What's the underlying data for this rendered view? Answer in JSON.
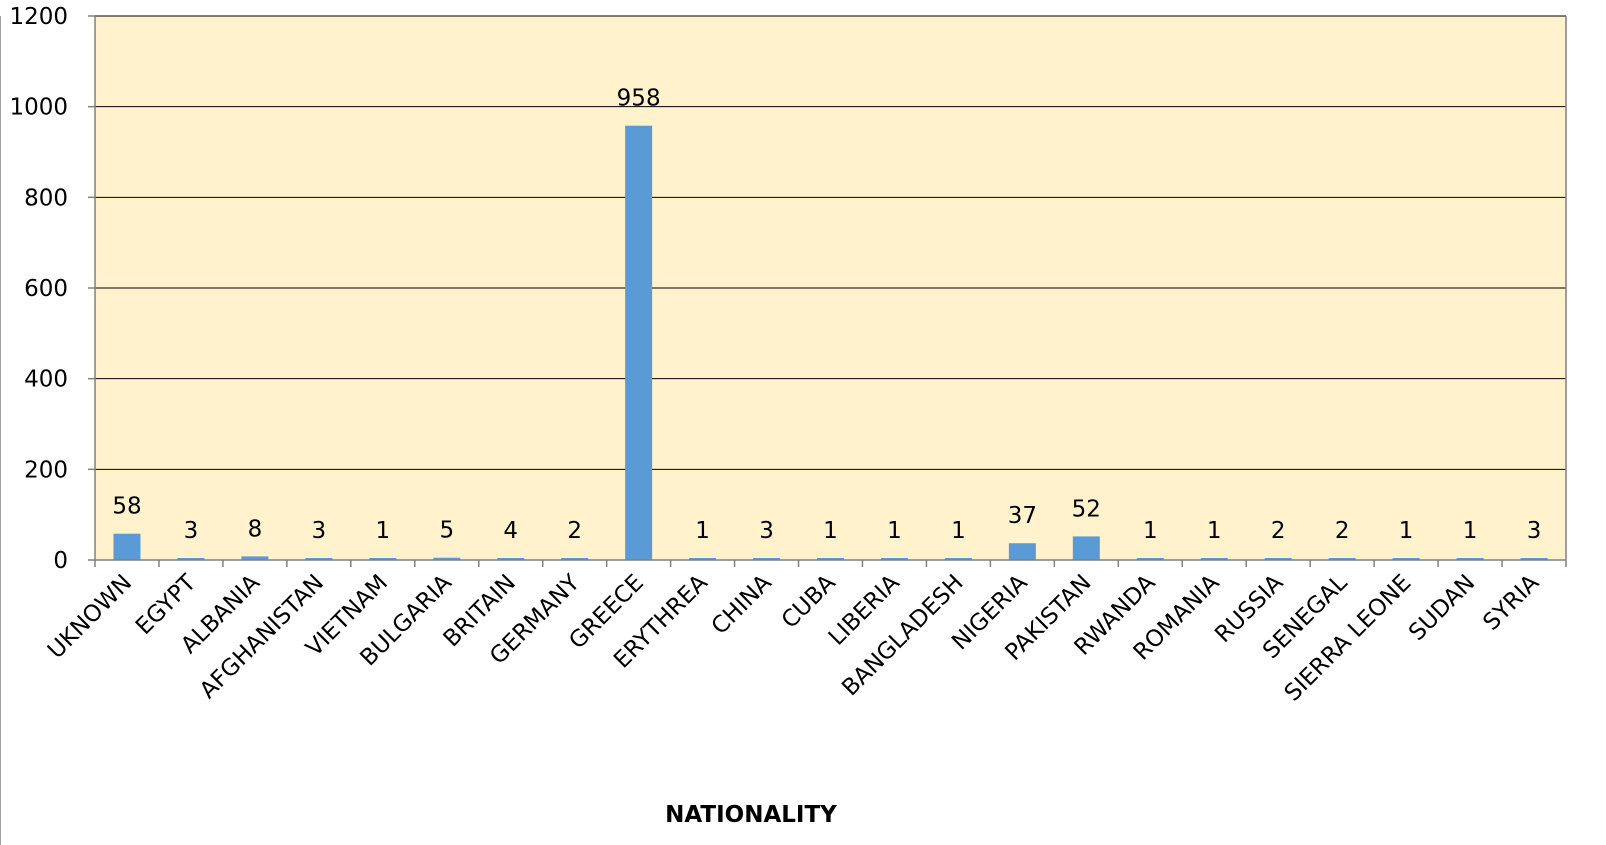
{
  "colors": {
    "plot_background": "#fff2cc",
    "bar": "#5b9bd5",
    "gridline": "#000000"
  },
  "chart_data": {
    "type": "bar",
    "title": "",
    "xlabel": "NATIONALITY",
    "ylabel": "",
    "ylim": [
      0,
      1200
    ],
    "yticks": [
      0,
      200,
      400,
      600,
      800,
      1000,
      1200
    ],
    "grid": true,
    "legend": "none",
    "categories": [
      "UKNOWN",
      "EGYPT",
      "ALBANIA",
      "AFGHANISTAN",
      "VIETNAM",
      "BULGARIA",
      "BRITAIN",
      "GERMANY",
      "GREECE",
      "ERYTHREA",
      "CHINA",
      "CUBA",
      "LIBERIA",
      "BANGLADESH",
      "NIGERIA",
      "PAKISTAN",
      "RWANDA",
      "ROMANIA",
      "RUSSIA",
      "SENEGAL",
      "SIERRA LEONE",
      "SUDAN",
      "SYRIA"
    ],
    "values": [
      58,
      3,
      8,
      3,
      1,
      5,
      4,
      2,
      958,
      1,
      3,
      1,
      1,
      1,
      37,
      52,
      1,
      1,
      2,
      2,
      1,
      1,
      3
    ]
  }
}
